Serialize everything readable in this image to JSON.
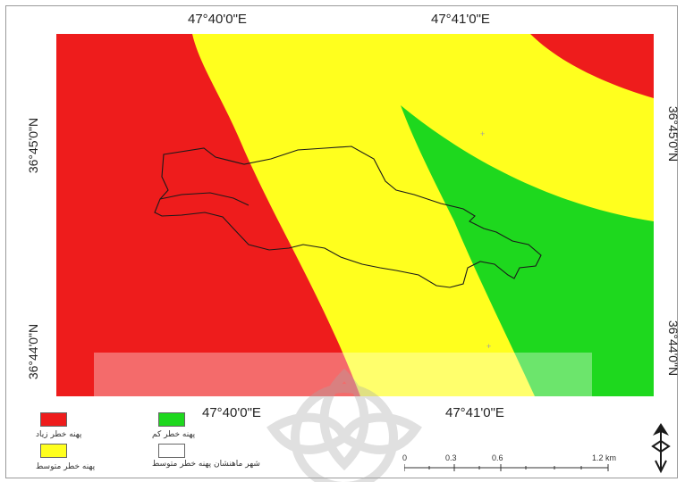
{
  "coordinates": {
    "top_lon_1": "47°40'0\"E",
    "top_lon_2": "47°41'0\"E",
    "bottom_lon_1": "47°40'0\"E",
    "bottom_lon_2": "47°41'0\"E",
    "left_lat_1": "36°45'0\"N",
    "left_lat_2": "36°44'0\"N",
    "right_lat_1": "36°45'0\"N",
    "right_lat_2": "36°44'0\"N"
  },
  "zones": {
    "high_color": "#ee1c1c",
    "medium_color": "#ffff1e",
    "low_color": "#1ed81e",
    "city_outline_color": "#1a1a1a"
  },
  "legend": {
    "high_risk": "پهنه خطر زیاد",
    "low_risk": "پهنه خطر کم",
    "medium_risk": "پهنه خطر متوسط",
    "city_boundary": "شهر ماهنشان پهنه خطر متوسط"
  },
  "scale_bar": {
    "tick_0": "0",
    "tick_1": "0.3",
    "tick_2": "0.6",
    "tick_3": "1.2 km"
  },
  "icons": {
    "north_arrow": "north-arrow-icon",
    "watermark": "university-logo"
  }
}
